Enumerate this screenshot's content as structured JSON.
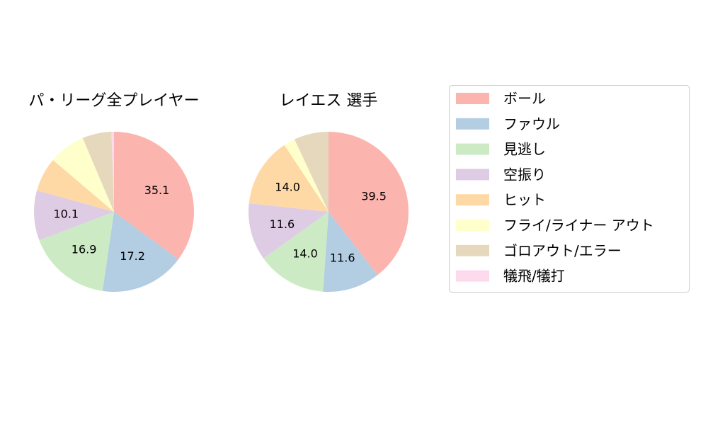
{
  "chart_data": [
    {
      "type": "pie",
      "title": "パ・リーグ全プレイヤー",
      "categories": [
        "ボール",
        "ファウル",
        "見逃し",
        "空振り",
        "ヒット",
        "フライ/ライナー アウト",
        "ゴロアウト/エラー",
        "犠飛/犠打"
      ],
      "values": [
        35.1,
        17.2,
        16.9,
        10.1,
        6.9,
        7.4,
        5.9,
        0.5
      ],
      "value_labels": [
        "35.1",
        "17.2",
        "16.9",
        "10.1",
        "",
        "",
        "",
        ""
      ]
    },
    {
      "type": "pie",
      "title": "レイエス  選手",
      "categories": [
        "ボール",
        "ファウル",
        "見逃し",
        "空振り",
        "ヒット",
        "フライ/ライナー アウト",
        "ゴロアウト/エラー",
        "犠飛/犠打"
      ],
      "values": [
        39.5,
        11.6,
        14.0,
        11.6,
        14.0,
        2.3,
        7.0,
        0.0
      ],
      "value_labels": [
        "39.5",
        "11.6",
        "14.0",
        "11.6",
        "14.0",
        "",
        "",
        ""
      ]
    }
  ],
  "legend": {
    "position": "right",
    "entries": [
      {
        "label": "ボール",
        "color": "#fbb4ae"
      },
      {
        "label": "ファウル",
        "color": "#b3cde3"
      },
      {
        "label": "見逃し",
        "color": "#ccebc5"
      },
      {
        "label": "空振り",
        "color": "#decbe4"
      },
      {
        "label": "ヒット",
        "color": "#fed9a6"
      },
      {
        "label": "フライ/ライナー アウト",
        "color": "#ffffcc"
      },
      {
        "label": "ゴロアウト/エラー",
        "color": "#e5d8bd"
      },
      {
        "label": "犠飛/犠打",
        "color": "#fddaec"
      }
    ]
  }
}
